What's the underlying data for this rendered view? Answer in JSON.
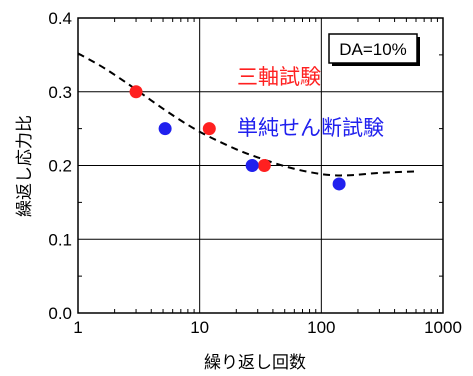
{
  "chart_data": {
    "type": "scatter",
    "x_scale": "log",
    "xlim": [
      1,
      1000
    ],
    "ylim": [
      0.0,
      0.4
    ],
    "x_ticks": [
      1,
      10,
      100,
      1000
    ],
    "x_tick_labels": [
      "1",
      "10",
      "100",
      "1000"
    ],
    "y_ticks": [
      0.0,
      0.1,
      0.2,
      0.3,
      0.4
    ],
    "y_tick_labels": [
      "0.0",
      "0.1",
      "0.2",
      "0.3",
      "0.4"
    ],
    "xlabel": "繰り返し回数",
    "ylabel": "繰返し応力比",
    "grid": true,
    "annotation": "DA=10%",
    "series": [
      {
        "name": "三軸試験",
        "color": "#ff2020",
        "marker": "circle",
        "x": [
          3.0,
          12.0,
          34.0
        ],
        "y": [
          0.3,
          0.25,
          0.2
        ]
      },
      {
        "name": "単純せん断試験",
        "color": "#2020ee",
        "marker": "circle",
        "x": [
          5.2,
          27.0,
          140.0
        ],
        "y": [
          0.25,
          0.2,
          0.175
        ]
      }
    ],
    "trend_line": {
      "style": "dashed",
      "color": "#000000",
      "x": [
        1,
        1.5,
        2,
        3,
        5,
        8,
        12,
        20,
        30,
        50,
        80,
        120,
        180,
        300,
        600
      ],
      "y": [
        0.352,
        0.336,
        0.323,
        0.303,
        0.277,
        0.255,
        0.239,
        0.222,
        0.211,
        0.199,
        0.191,
        0.187,
        0.187,
        0.19,
        0.192
      ]
    }
  }
}
